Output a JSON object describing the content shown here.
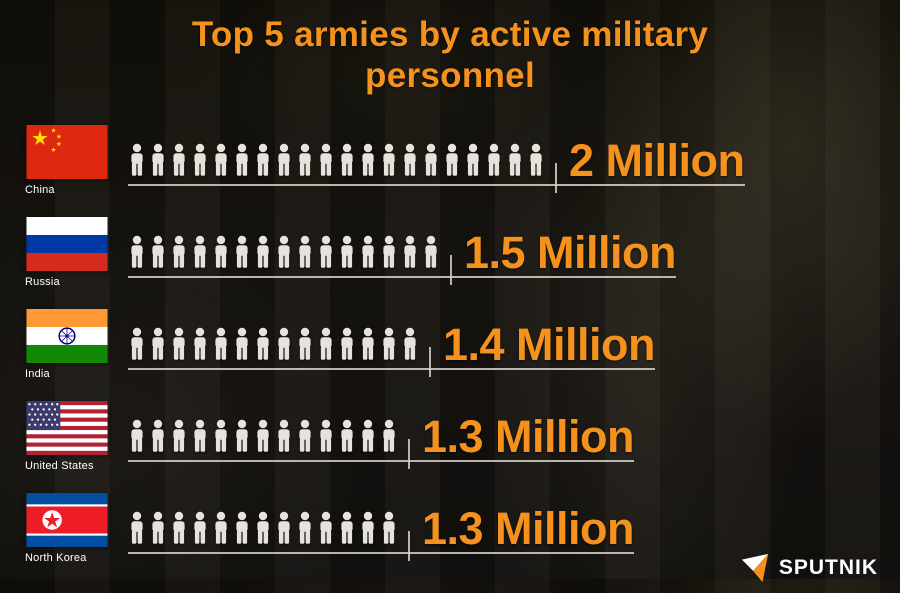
{
  "title": "Top 5 armies by active military personnel",
  "logo": {
    "text": "SPUTNIK"
  },
  "colors": {
    "accent": "#f5921e",
    "icon": "#e6e2dc",
    "line": "#d7d2c8"
  },
  "chart_data": {
    "type": "bar",
    "variant": "pictogram",
    "title": "Top 5 armies by active military personnel",
    "unit_per_icon": 100000,
    "legend_position": "none",
    "grid": false,
    "rows": [
      {
        "country": "China",
        "value": 2000000,
        "value_label": "2 Million",
        "icons": 20
      },
      {
        "country": "Russia",
        "value": 1500000,
        "value_label": "1.5 Million",
        "icons": 15
      },
      {
        "country": "India",
        "value": 1400000,
        "value_label": "1.4 Million",
        "icons": 14
      },
      {
        "country": "United States",
        "value": 1300000,
        "value_label": "1.3 Million",
        "icons": 13
      },
      {
        "country": "North Korea",
        "value": 1300000,
        "value_label": "1.3 Million",
        "icons": 13
      }
    ]
  }
}
